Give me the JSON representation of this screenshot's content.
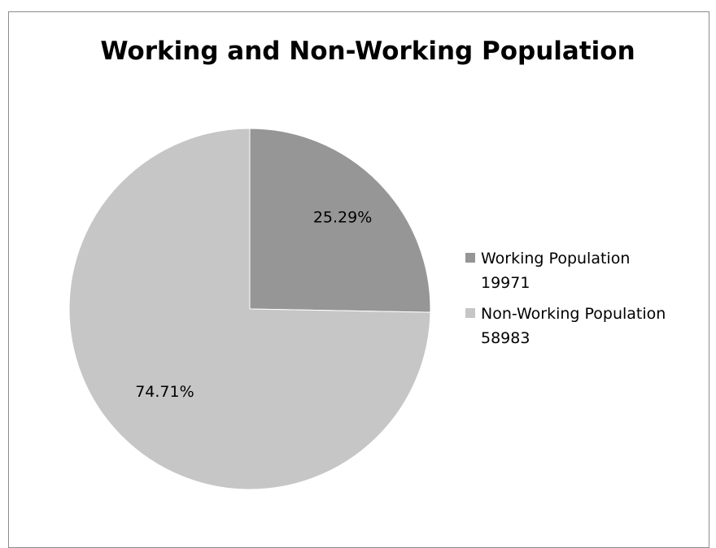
{
  "chart_data": {
    "type": "pie",
    "title": "Working and Non-Working Population",
    "categories": [
      "Working Population",
      "Non-Working Population"
    ],
    "values": [
      19971,
      58983
    ],
    "percent_labels": [
      "25.29%",
      "74.71%"
    ],
    "legend": {
      "placement": "right",
      "entries": [
        {
          "name_line": "Working Population",
          "value_line": "19971"
        },
        {
          "name_line": "Non-Working Population",
          "value_line": "58983"
        }
      ]
    },
    "colors": [
      "#969696",
      "#c6c6c6"
    ]
  }
}
